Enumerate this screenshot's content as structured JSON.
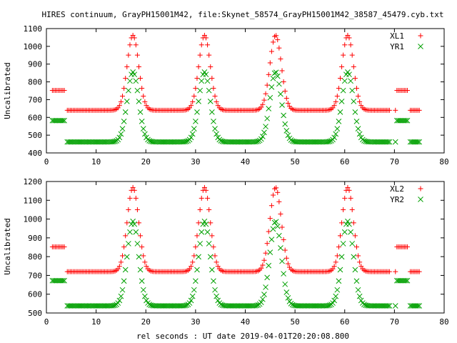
{
  "title": "HIRES continuum, GrayPH15001M42, file:Skynet_58574_GrayPH15001M42_38587_45479.cyb.txt",
  "xlabel": "rel seconds : UT date 2019-04-01T20:20:08.800",
  "colors": {
    "red": "#ff0000",
    "green": "#00a000"
  },
  "chart_data": [
    {
      "type": "scatter",
      "ylabel": "Uncalibrated",
      "xlim": [
        0,
        80
      ],
      "ylim": [
        400,
        1100
      ],
      "xticks": [
        "0",
        "10",
        "20",
        "30",
        "40",
        "50",
        "60",
        "70",
        "80"
      ],
      "yticks": [
        "400",
        "500",
        "600",
        "700",
        "800",
        "900",
        "1000",
        "1100"
      ],
      "legend_position": "top-right",
      "params": {
        "peaks": [
          17.4,
          31.8,
          46.1,
          60.6
        ],
        "width": 1.15,
        "high": [
          1.2,
          3.6,
          70.2,
          72.7
        ]
      },
      "series": [
        {
          "name": "XL1",
          "marker": "plus",
          "color": "#ff0000",
          "base": 640,
          "peak": 1062,
          "high": 752
        },
        {
          "name": "YR1",
          "marker": "cross",
          "color": "#00a000",
          "base": 462,
          "peak": 855,
          "high": 582
        }
      ]
    },
    {
      "type": "scatter",
      "ylabel": "Uncalibrated",
      "xlim": [
        0,
        80
      ],
      "ylim": [
        500,
        1200
      ],
      "xticks": [
        "0",
        "10",
        "20",
        "30",
        "40",
        "50",
        "60",
        "70",
        "80"
      ],
      "yticks": [
        "500",
        "600",
        "700",
        "800",
        "900",
        "1000",
        "1100",
        "1200"
      ],
      "legend_position": "top-right",
      "params": {
        "peaks": [
          17.4,
          31.8,
          46.1,
          60.6
        ],
        "width": 1.15,
        "high": [
          1.2,
          3.6,
          70.2,
          72.7
        ]
      },
      "series": [
        {
          "name": "XL2",
          "marker": "plus",
          "color": "#ff0000",
          "base": 720,
          "peak": 1168,
          "high": 852
        },
        {
          "name": "YR2",
          "marker": "cross",
          "color": "#00a000",
          "base": 538,
          "peak": 988,
          "high": 672
        }
      ]
    }
  ]
}
